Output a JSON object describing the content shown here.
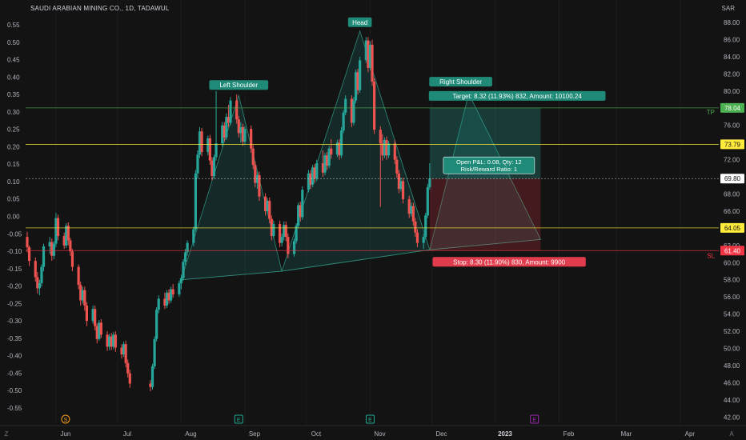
{
  "header": {
    "title": "SAUDI ARABIAN MINING CO., 1D, TADAWUL",
    "currency": "SAR"
  },
  "chart_data": {
    "type": "candlestick",
    "left_axis": {
      "ticks": [
        "0.55",
        "0.50",
        "0.45",
        "0.40",
        "0.35",
        "0.30",
        "0.25",
        "0.20",
        "0.15",
        "0.10",
        "0.05",
        "0.00",
        "-0.05",
        "-0.10",
        "-0.15",
        "-0.20",
        "-0.25",
        "-0.30",
        "-0.35",
        "-0.40",
        "-0.45",
        "-0.50",
        "-0.55"
      ]
    },
    "right_axis": {
      "ticks": [
        "88.00",
        "86.00",
        "84.00",
        "82.00",
        "80.00",
        "78.00",
        "76.00",
        "74.00",
        "72.00",
        "70.00",
        "68.00",
        "66.00",
        "64.00",
        "62.00",
        "60.00",
        "58.00",
        "56.00",
        "54.00",
        "52.00",
        "50.00",
        "48.00",
        "46.00",
        "44.00",
        "42.00"
      ],
      "ylim": [
        41.0,
        89.5
      ]
    },
    "x_axis": {
      "ticks": [
        "Jun",
        "Jul",
        "Aug",
        "Sep",
        "Oct",
        "Nov",
        "Dec",
        "2023",
        "Feb",
        "Mar",
        "Apr"
      ]
    },
    "events": [
      {
        "label": "S",
        "color": "#f7a21b"
      },
      {
        "label": "E",
        "color": "#22ab94"
      },
      {
        "label": "E",
        "color": "#22ab94"
      },
      {
        "label": "E",
        "color": "#9c27b0"
      }
    ],
    "price_levels": [
      {
        "value": 78.04,
        "label": "78.04",
        "color": "#4caf50",
        "tag": "TP"
      },
      {
        "value": 73.79,
        "label": "73.79",
        "color": "#ffeb3b",
        "tag": ""
      },
      {
        "value": 69.8,
        "label": "69.80",
        "color": "#ffffff",
        "tag": ""
      },
      {
        "value": 64.05,
        "label": "64.05",
        "color": "#ffeb3b",
        "tag": ""
      },
      {
        "value": 61.4,
        "label": "61.40",
        "color": "#f23645",
        "tag": "SL"
      }
    ],
    "pattern_labels": {
      "left_shoulder": "Left Shoulder",
      "head": "Head",
      "right_shoulder": "Right Shoulder"
    },
    "position": {
      "target": "Target: 8.32 (11.93%) 832, Amount: 10100.24",
      "stop": "Stop: 8.30 (11.90%) 830, Amount: 9900",
      "pnl_line1": "Open P&L: 0.08, Qty: 12",
      "pnl_line2": "Risk/Reward Ratio: 1"
    },
    "pattern_points": [
      {
        "date": "2022-08-01",
        "price": 58.0
      },
      {
        "date": "2022-08-29",
        "price": 79.5
      },
      {
        "date": "2022-09-19",
        "price": 59.0
      },
      {
        "date": "2022-10-27",
        "price": 87.0
      },
      {
        "date": "2022-11-30",
        "price": 61.5
      },
      {
        "date": "2022-12-19",
        "price": 79.7
      },
      {
        "date": "2023-01-23",
        "price": 62.7
      }
    ],
    "ohlc": [
      {
        "date": "2022-05-18",
        "o": 63.0,
        "h": 63.6,
        "l": 61.2,
        "c": 61.8
      },
      {
        "date": "2022-05-19",
        "o": 61.8,
        "h": 62.0,
        "l": 59.6,
        "c": 60.2
      },
      {
        "date": "2022-05-22",
        "o": 60.2,
        "h": 60.6,
        "l": 57.8,
        "c": 58.3
      },
      {
        "date": "2022-05-23",
        "o": 58.3,
        "h": 58.9,
        "l": 56.4,
        "c": 57.0
      },
      {
        "date": "2022-05-24",
        "o": 57.0,
        "h": 58.0,
        "l": 56.2,
        "c": 57.6
      },
      {
        "date": "2022-05-25",
        "o": 57.6,
        "h": 59.8,
        "l": 57.2,
        "c": 59.5
      },
      {
        "date": "2022-05-26",
        "o": 59.5,
        "h": 62.2,
        "l": 59.0,
        "c": 61.9
      },
      {
        "date": "2022-05-29",
        "o": 61.9,
        "h": 63.0,
        "l": 61.0,
        "c": 62.4
      },
      {
        "date": "2022-05-30",
        "o": 62.4,
        "h": 62.8,
        "l": 60.2,
        "c": 60.8
      },
      {
        "date": "2022-05-31",
        "o": 60.8,
        "h": 62.5,
        "l": 60.4,
        "c": 62.2
      },
      {
        "date": "2022-06-01",
        "o": 62.2,
        "h": 65.8,
        "l": 61.8,
        "c": 65.2
      },
      {
        "date": "2022-06-02",
        "o": 65.2,
        "h": 65.6,
        "l": 62.6,
        "c": 63.1
      },
      {
        "date": "2022-06-05",
        "o": 63.1,
        "h": 63.5,
        "l": 61.6,
        "c": 62.0
      },
      {
        "date": "2022-06-06",
        "o": 62.0,
        "h": 64.6,
        "l": 61.7,
        "c": 64.3
      },
      {
        "date": "2022-06-07",
        "o": 64.3,
        "h": 64.7,
        "l": 62.0,
        "c": 62.6
      },
      {
        "date": "2022-06-08",
        "o": 62.6,
        "h": 62.9,
        "l": 60.8,
        "c": 61.3
      },
      {
        "date": "2022-06-09",
        "o": 61.3,
        "h": 61.6,
        "l": 59.0,
        "c": 59.5
      },
      {
        "date": "2022-06-12",
        "o": 59.5,
        "h": 59.8,
        "l": 56.9,
        "c": 57.4
      },
      {
        "date": "2022-06-13",
        "o": 57.4,
        "h": 57.8,
        "l": 55.0,
        "c": 55.6
      },
      {
        "date": "2022-06-14",
        "o": 55.6,
        "h": 57.2,
        "l": 55.2,
        "c": 56.8
      },
      {
        "date": "2022-06-15",
        "o": 56.8,
        "h": 57.2,
        "l": 54.4,
        "c": 55.0
      },
      {
        "date": "2022-06-16",
        "o": 55.0,
        "h": 55.4,
        "l": 52.6,
        "c": 53.2
      },
      {
        "date": "2022-06-19",
        "o": 53.2,
        "h": 55.0,
        "l": 52.9,
        "c": 54.6
      },
      {
        "date": "2022-06-20",
        "o": 54.6,
        "h": 55.0,
        "l": 52.1,
        "c": 52.6
      },
      {
        "date": "2022-06-21",
        "o": 52.6,
        "h": 52.9,
        "l": 50.6,
        "c": 51.1
      },
      {
        "date": "2022-06-22",
        "o": 51.1,
        "h": 53.3,
        "l": 50.9,
        "c": 53.0
      },
      {
        "date": "2022-06-23",
        "o": 53.0,
        "h": 53.4,
        "l": 51.2,
        "c": 51.6
      },
      {
        "date": "2022-06-26",
        "o": 51.6,
        "h": 52.0,
        "l": 49.7,
        "c": 50.2
      },
      {
        "date": "2022-06-27",
        "o": 50.2,
        "h": 51.7,
        "l": 49.8,
        "c": 51.4
      },
      {
        "date": "2022-06-28",
        "o": 51.4,
        "h": 51.8,
        "l": 49.8,
        "c": 50.2
      },
      {
        "date": "2022-06-29",
        "o": 50.2,
        "h": 51.9,
        "l": 49.9,
        "c": 51.6
      },
      {
        "date": "2022-06-30",
        "o": 51.6,
        "h": 52.0,
        "l": 49.6,
        "c": 50.1
      },
      {
        "date": "2022-07-03",
        "o": 50.1,
        "h": 50.5,
        "l": 48.8,
        "c": 49.3
      },
      {
        "date": "2022-07-04",
        "o": 49.3,
        "h": 50.8,
        "l": 49.0,
        "c": 50.5
      },
      {
        "date": "2022-07-05",
        "o": 50.5,
        "h": 50.9,
        "l": 47.8,
        "c": 48.3
      },
      {
        "date": "2022-07-06",
        "o": 48.3,
        "h": 48.7,
        "l": 46.6,
        "c": 47.1
      },
      {
        "date": "2022-07-07",
        "o": 47.1,
        "h": 47.5,
        "l": 45.4,
        "c": 45.9
      },
      {
        "date": "2022-07-17",
        "o": 45.9,
        "h": 46.3,
        "l": 45.0,
        "c": 45.5
      },
      {
        "date": "2022-07-18",
        "o": 45.5,
        "h": 48.2,
        "l": 45.2,
        "c": 47.9
      },
      {
        "date": "2022-07-19",
        "o": 47.9,
        "h": 51.4,
        "l": 47.6,
        "c": 51.1
      },
      {
        "date": "2022-07-20",
        "o": 51.1,
        "h": 54.8,
        "l": 50.8,
        "c": 54.5
      },
      {
        "date": "2022-07-21",
        "o": 54.5,
        "h": 56.2,
        "l": 54.1,
        "c": 55.8
      },
      {
        "date": "2022-07-24",
        "o": 55.8,
        "h": 56.5,
        "l": 54.6,
        "c": 55.0
      },
      {
        "date": "2022-07-25",
        "o": 55.0,
        "h": 56.8,
        "l": 54.7,
        "c": 56.5
      },
      {
        "date": "2022-07-26",
        "o": 56.5,
        "h": 56.9,
        "l": 55.2,
        "c": 55.6
      },
      {
        "date": "2022-07-27",
        "o": 55.6,
        "h": 57.2,
        "l": 55.3,
        "c": 56.9
      },
      {
        "date": "2022-07-28",
        "o": 56.9,
        "h": 57.5,
        "l": 55.9,
        "c": 56.3
      },
      {
        "date": "2022-07-31",
        "o": 56.3,
        "h": 57.9,
        "l": 56.0,
        "c": 57.6
      },
      {
        "date": "2022-08-01",
        "o": 57.6,
        "h": 58.6,
        "l": 56.9,
        "c": 58.2
      },
      {
        "date": "2022-08-02",
        "o": 58.2,
        "h": 60.4,
        "l": 57.9,
        "c": 60.1
      },
      {
        "date": "2022-08-03",
        "o": 60.1,
        "h": 61.6,
        "l": 59.7,
        "c": 61.2
      },
      {
        "date": "2022-08-04",
        "o": 61.2,
        "h": 62.6,
        "l": 60.8,
        "c": 62.3
      },
      {
        "date": "2022-08-07",
        "o": 62.3,
        "h": 64.2,
        "l": 61.9,
        "c": 63.9
      },
      {
        "date": "2022-08-08",
        "o": 63.9,
        "h": 70.8,
        "l": 63.6,
        "c": 70.4
      },
      {
        "date": "2022-08-09",
        "o": 70.4,
        "h": 73.1,
        "l": 69.8,
        "c": 72.6
      },
      {
        "date": "2022-08-10",
        "o": 72.6,
        "h": 75.8,
        "l": 72.2,
        "c": 75.3
      },
      {
        "date": "2022-08-11",
        "o": 75.3,
        "h": 75.7,
        "l": 72.4,
        "c": 72.9
      },
      {
        "date": "2022-08-14",
        "o": 72.9,
        "h": 74.8,
        "l": 72.5,
        "c": 74.5
      },
      {
        "date": "2022-08-15",
        "o": 74.5,
        "h": 74.9,
        "l": 71.4,
        "c": 71.9
      },
      {
        "date": "2022-08-16",
        "o": 71.9,
        "h": 72.3,
        "l": 69.6,
        "c": 70.1
      },
      {
        "date": "2022-08-17",
        "o": 70.1,
        "h": 72.6,
        "l": 69.8,
        "c": 72.3
      },
      {
        "date": "2022-08-18",
        "o": 72.3,
        "h": 80.0,
        "l": 71.9,
        "c": 73.9
      },
      {
        "date": "2022-08-21",
        "o": 73.9,
        "h": 76.4,
        "l": 73.5,
        "c": 76.0
      },
      {
        "date": "2022-08-22",
        "o": 76.0,
        "h": 76.4,
        "l": 74.1,
        "c": 74.6
      },
      {
        "date": "2022-08-23",
        "o": 74.6,
        "h": 77.4,
        "l": 74.3,
        "c": 77.0
      },
      {
        "date": "2022-08-24",
        "o": 77.0,
        "h": 78.4,
        "l": 75.8,
        "c": 76.3
      },
      {
        "date": "2022-08-25",
        "o": 76.3,
        "h": 79.3,
        "l": 76.0,
        "c": 78.9
      },
      {
        "date": "2022-08-28",
        "o": 78.9,
        "h": 79.6,
        "l": 76.2,
        "c": 76.7
      },
      {
        "date": "2022-08-29",
        "o": 76.7,
        "h": 77.1,
        "l": 74.6,
        "c": 75.1
      },
      {
        "date": "2022-08-30",
        "o": 75.1,
        "h": 76.4,
        "l": 74.0,
        "c": 75.8
      },
      {
        "date": "2022-08-31",
        "o": 75.8,
        "h": 76.2,
        "l": 73.6,
        "c": 74.1
      },
      {
        "date": "2022-09-01",
        "o": 74.1,
        "h": 75.9,
        "l": 73.8,
        "c": 75.6
      },
      {
        "date": "2022-09-04",
        "o": 75.6,
        "h": 76.0,
        "l": 72.8,
        "c": 73.3
      },
      {
        "date": "2022-09-05",
        "o": 73.3,
        "h": 73.7,
        "l": 70.9,
        "c": 71.4
      },
      {
        "date": "2022-09-06",
        "o": 71.4,
        "h": 71.8,
        "l": 68.8,
        "c": 69.3
      },
      {
        "date": "2022-09-07",
        "o": 69.3,
        "h": 70.6,
        "l": 68.6,
        "c": 70.2
      },
      {
        "date": "2022-09-08",
        "o": 70.2,
        "h": 70.6,
        "l": 67.2,
        "c": 67.7
      },
      {
        "date": "2022-09-11",
        "o": 67.7,
        "h": 68.1,
        "l": 65.5,
        "c": 66.0
      },
      {
        "date": "2022-09-12",
        "o": 66.0,
        "h": 67.5,
        "l": 65.7,
        "c": 67.2
      },
      {
        "date": "2022-09-13",
        "o": 67.2,
        "h": 67.6,
        "l": 64.6,
        "c": 65.1
      },
      {
        "date": "2022-09-14",
        "o": 65.1,
        "h": 65.5,
        "l": 62.6,
        "c": 63.1
      },
      {
        "date": "2022-09-15",
        "o": 63.1,
        "h": 64.9,
        "l": 62.8,
        "c": 64.5
      },
      {
        "date": "2022-09-18",
        "o": 64.5,
        "h": 64.9,
        "l": 61.8,
        "c": 62.3
      },
      {
        "date": "2022-09-19",
        "o": 62.3,
        "h": 63.4,
        "l": 61.9,
        "c": 63.0
      },
      {
        "date": "2022-09-20",
        "o": 63.0,
        "h": 64.8,
        "l": 62.6,
        "c": 64.4
      },
      {
        "date": "2022-09-21",
        "o": 64.4,
        "h": 64.8,
        "l": 62.5,
        "c": 63.0
      },
      {
        "date": "2022-09-22",
        "o": 63.0,
        "h": 63.4,
        "l": 60.5,
        "c": 61.0
      },
      {
        "date": "2022-09-25",
        "o": 61.0,
        "h": 62.8,
        "l": 60.7,
        "c": 62.5
      },
      {
        "date": "2022-09-26",
        "o": 62.5,
        "h": 64.6,
        "l": 62.2,
        "c": 64.3
      },
      {
        "date": "2022-09-27",
        "o": 64.3,
        "h": 67.0,
        "l": 64.0,
        "c": 66.7
      },
      {
        "date": "2022-09-28",
        "o": 66.7,
        "h": 67.1,
        "l": 64.8,
        "c": 65.3
      },
      {
        "date": "2022-09-29",
        "o": 65.3,
        "h": 68.9,
        "l": 65.0,
        "c": 68.5
      },
      {
        "date": "2022-10-02",
        "o": 68.5,
        "h": 70.8,
        "l": 68.2,
        "c": 70.4
      },
      {
        "date": "2022-10-03",
        "o": 70.4,
        "h": 70.8,
        "l": 68.6,
        "c": 69.1
      },
      {
        "date": "2022-10-04",
        "o": 69.1,
        "h": 71.4,
        "l": 68.8,
        "c": 71.1
      },
      {
        "date": "2022-10-05",
        "o": 71.1,
        "h": 71.5,
        "l": 69.3,
        "c": 69.8
      },
      {
        "date": "2022-10-06",
        "o": 69.8,
        "h": 72.0,
        "l": 69.5,
        "c": 71.6
      },
      {
        "date": "2022-10-09",
        "o": 71.6,
        "h": 73.1,
        "l": 70.0,
        "c": 70.5
      },
      {
        "date": "2022-10-10",
        "o": 70.5,
        "h": 72.8,
        "l": 70.2,
        "c": 72.5
      },
      {
        "date": "2022-10-11",
        "o": 72.5,
        "h": 72.9,
        "l": 70.8,
        "c": 71.3
      },
      {
        "date": "2022-10-12",
        "o": 71.3,
        "h": 73.6,
        "l": 71.0,
        "c": 73.3
      },
      {
        "date": "2022-10-13",
        "o": 73.3,
        "h": 74.4,
        "l": 72.1,
        "c": 72.6
      },
      {
        "date": "2022-10-16",
        "o": 72.6,
        "h": 74.3,
        "l": 72.3,
        "c": 74.0
      },
      {
        "date": "2022-10-17",
        "o": 74.0,
        "h": 74.4,
        "l": 72.0,
        "c": 72.5
      },
      {
        "date": "2022-10-18",
        "o": 72.5,
        "h": 75.8,
        "l": 72.2,
        "c": 75.4
      },
      {
        "date": "2022-10-19",
        "o": 75.4,
        "h": 77.8,
        "l": 75.1,
        "c": 77.5
      },
      {
        "date": "2022-10-20",
        "o": 77.5,
        "h": 79.5,
        "l": 77.2,
        "c": 79.1
      },
      {
        "date": "2022-10-23",
        "o": 79.1,
        "h": 79.5,
        "l": 75.8,
        "c": 76.3
      },
      {
        "date": "2022-10-24",
        "o": 76.3,
        "h": 79.3,
        "l": 76.0,
        "c": 78.9
      },
      {
        "date": "2022-10-25",
        "o": 78.9,
        "h": 82.5,
        "l": 78.6,
        "c": 82.2
      },
      {
        "date": "2022-10-26",
        "o": 82.2,
        "h": 82.6,
        "l": 79.6,
        "c": 80.1
      },
      {
        "date": "2022-10-27",
        "o": 80.1,
        "h": 84.0,
        "l": 79.8,
        "c": 83.6
      },
      {
        "date": "2022-10-30",
        "o": 83.6,
        "h": 86.3,
        "l": 83.3,
        "c": 85.9
      },
      {
        "date": "2022-10-31",
        "o": 85.9,
        "h": 86.3,
        "l": 82.2,
        "c": 82.7
      },
      {
        "date": "2022-11-01",
        "o": 82.7,
        "h": 85.8,
        "l": 82.4,
        "c": 85.4
      },
      {
        "date": "2022-11-02",
        "o": 85.4,
        "h": 86.0,
        "l": 80.6,
        "c": 81.1
      },
      {
        "date": "2022-11-03",
        "o": 81.1,
        "h": 81.5,
        "l": 75.0,
        "c": 75.5
      },
      {
        "date": "2022-11-06",
        "o": 75.5,
        "h": 75.9,
        "l": 66.5,
        "c": 73.9
      },
      {
        "date": "2022-11-07",
        "o": 73.9,
        "h": 75.0,
        "l": 71.9,
        "c": 72.5
      },
      {
        "date": "2022-11-08",
        "o": 72.5,
        "h": 74.6,
        "l": 72.2,
        "c": 74.3
      },
      {
        "date": "2022-11-09",
        "o": 74.3,
        "h": 74.7,
        "l": 72.0,
        "c": 72.5
      },
      {
        "date": "2022-11-10",
        "o": 72.5,
        "h": 74.2,
        "l": 72.2,
        "c": 73.9
      },
      {
        "date": "2022-11-13",
        "o": 73.9,
        "h": 74.3,
        "l": 71.5,
        "c": 72.0
      },
      {
        "date": "2022-11-14",
        "o": 72.0,
        "h": 72.4,
        "l": 69.9,
        "c": 70.4
      },
      {
        "date": "2022-11-15",
        "o": 70.4,
        "h": 70.8,
        "l": 68.1,
        "c": 68.6
      },
      {
        "date": "2022-11-16",
        "o": 68.6,
        "h": 69.9,
        "l": 68.3,
        "c": 69.5
      },
      {
        "date": "2022-11-17",
        "o": 69.5,
        "h": 69.9,
        "l": 66.9,
        "c": 67.4
      },
      {
        "date": "2022-11-20",
        "o": 67.4,
        "h": 67.8,
        "l": 65.2,
        "c": 65.7
      },
      {
        "date": "2022-11-21",
        "o": 65.7,
        "h": 67.0,
        "l": 65.4,
        "c": 66.6
      },
      {
        "date": "2022-11-22",
        "o": 66.6,
        "h": 67.0,
        "l": 64.3,
        "c": 64.8
      },
      {
        "date": "2022-11-23",
        "o": 64.8,
        "h": 65.2,
        "l": 63.0,
        "c": 63.5
      },
      {
        "date": "2022-11-24",
        "o": 63.5,
        "h": 63.9,
        "l": 61.8,
        "c": 62.3
      },
      {
        "date": "2022-11-27",
        "o": 62.3,
        "h": 63.4,
        "l": 61.6,
        "c": 63.0
      },
      {
        "date": "2022-11-28",
        "o": 63.0,
        "h": 65.8,
        "l": 62.7,
        "c": 65.5
      },
      {
        "date": "2022-11-29",
        "o": 65.5,
        "h": 69.2,
        "l": 65.2,
        "c": 68.8
      },
      {
        "date": "2022-11-30",
        "o": 68.8,
        "h": 71.6,
        "l": 68.5,
        "c": 69.8
      }
    ]
  }
}
